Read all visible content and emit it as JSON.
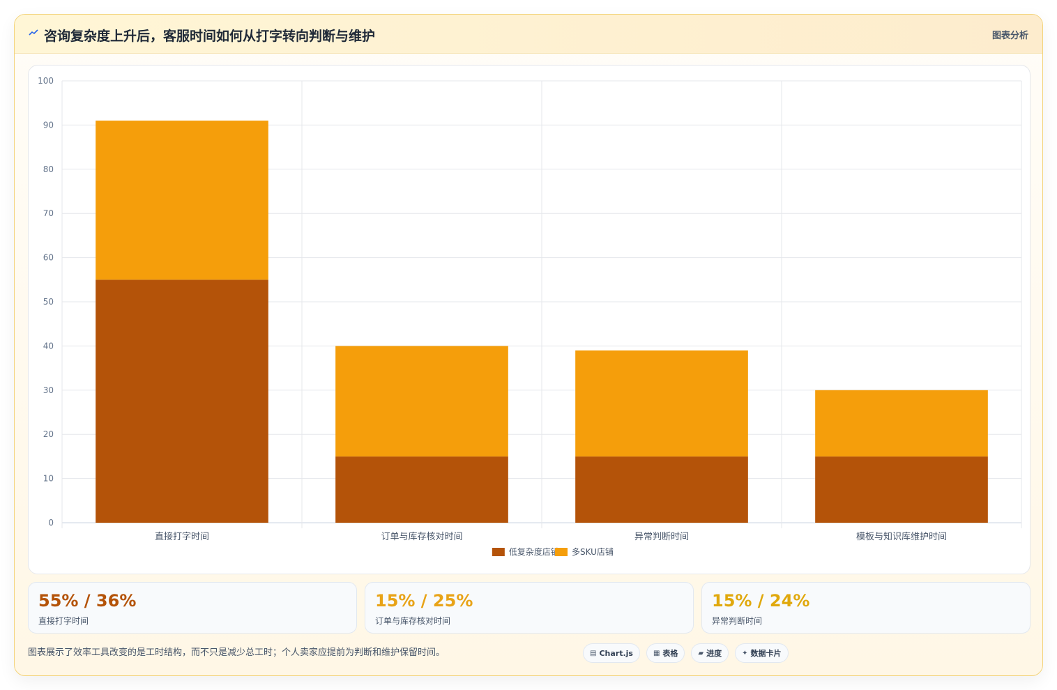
{
  "header": {
    "title": "咨询复杂度上升后，客服时间如何从打字转向判断与维护",
    "tag": "图表分析"
  },
  "chart_data": {
    "type": "bar",
    "stacked": true,
    "categories": [
      "直接打字时间",
      "订单与库存核对时间",
      "异常判断时间",
      "模板与知识库维护时间"
    ],
    "series": [
      {
        "name": "低复杂度店铺",
        "color": "#b45309",
        "values": [
          55,
          15,
          15,
          15
        ]
      },
      {
        "name": "多SKU店铺",
        "color": "#f59e0b",
        "values": [
          36,
          25,
          24,
          15
        ]
      }
    ],
    "ylim": [
      0,
      100
    ],
    "yticks": [
      0,
      10,
      20,
      30,
      40,
      50,
      60,
      70,
      80,
      90,
      100
    ],
    "grid": true,
    "legend": "bottom"
  },
  "stats": [
    {
      "value": "55% / 36%",
      "label": "直接打字时间",
      "color": "#b45309"
    },
    {
      "value": "15% / 25%",
      "label": "订单与库存核对时间",
      "color": "#e8a317"
    },
    {
      "value": "15% / 24%",
      "label": "异常判断时间",
      "color": "#e0a80c"
    }
  ],
  "footer": {
    "note": "图表展示了效率工具改变的是工时结构，而不只是减少总工时；个人卖家应提前为判断和维护保留时间。",
    "chips": [
      {
        "icon": "▤",
        "label": "Chart.js"
      },
      {
        "icon": "▦",
        "label": "表格"
      },
      {
        "icon": "▰",
        "label": "进度"
      },
      {
        "icon": "✦",
        "label": "数据卡片"
      }
    ]
  }
}
